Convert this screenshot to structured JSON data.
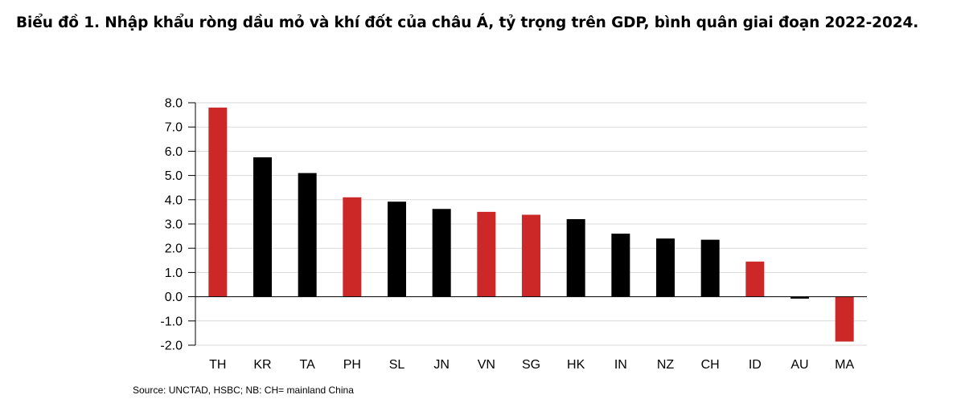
{
  "chart_data": {
    "type": "bar",
    "title": "Biểu đồ 1. Nhập khẩu ròng dầu mỏ và khí đốt của châu Á, tỷ trọng trên GDP, bình quân giai đoạn 2022-2024.",
    "xlabel": "",
    "ylabel": "",
    "categories": [
      "TH",
      "KR",
      "TA",
      "PH",
      "SL",
      "JN",
      "VN",
      "SG",
      "HK",
      "IN",
      "NZ",
      "CH",
      "ID",
      "AU",
      "MA"
    ],
    "values": [
      7.8,
      5.75,
      5.1,
      4.1,
      3.92,
      3.62,
      3.5,
      3.38,
      3.2,
      2.6,
      2.4,
      2.35,
      1.45,
      -0.08,
      -1.85
    ],
    "highlight": [
      true,
      false,
      false,
      true,
      false,
      false,
      true,
      true,
      false,
      false,
      false,
      false,
      true,
      false,
      true
    ],
    "colors": {
      "highlight": "#cc2828",
      "default": "#000000",
      "grid": "#d9d9d9"
    },
    "ylim": [
      -2.0,
      8.0
    ],
    "yticks": [
      "8.0",
      "7.0",
      "6.0",
      "5.0",
      "4.0",
      "3.0",
      "2.0",
      "1.0",
      "0.0",
      "-1.0",
      "-2.0"
    ],
    "grid": true,
    "legend": "none"
  },
  "source": "Source: UNCTAD, HSBC; NB: CH= mainland China"
}
